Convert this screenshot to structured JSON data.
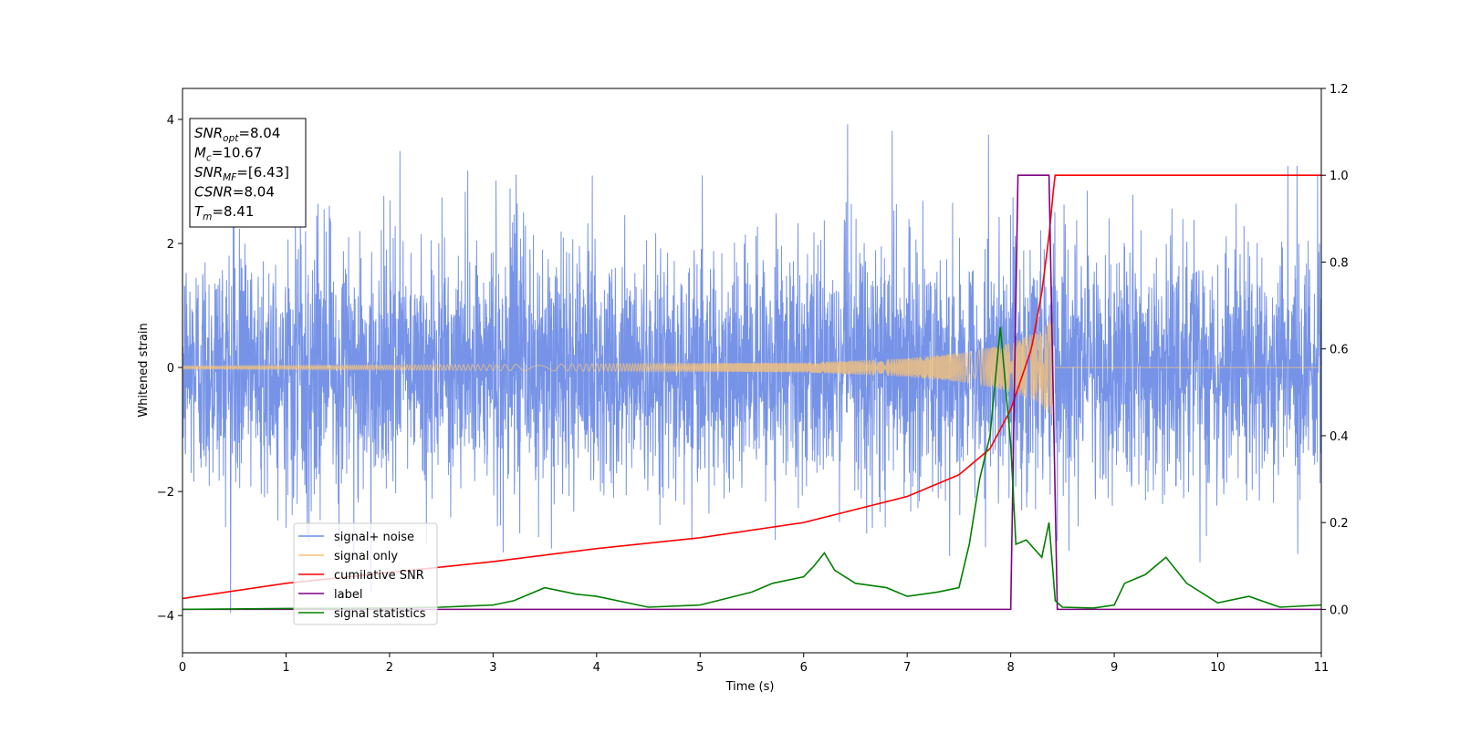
{
  "chart_data": {
    "type": "line",
    "xlabel": "Time (s)",
    "ylabel": "Whitened strain",
    "xlim": [
      0,
      11
    ],
    "ylim_left": [
      -4.6,
      4.5
    ],
    "ylim_right": [
      -0.1,
      1.2
    ],
    "x_ticks": [
      "0",
      "1",
      "2",
      "3",
      "4",
      "5",
      "6",
      "7",
      "8",
      "9",
      "10",
      "11"
    ],
    "y_ticks_left": [
      "4",
      "2",
      "0",
      "−2",
      "−4"
    ],
    "y_ticks_right": [
      "1.2",
      "1.0",
      "0.8",
      "0.6",
      "0.4",
      "0.2",
      "0.0"
    ],
    "info_box": [
      {
        "base": "SNR",
        "sub": "opt",
        "value": "=8.04"
      },
      {
        "base": "M",
        "sub": "c",
        "value": "=10.67"
      },
      {
        "base": "SNR",
        "sub": "MF",
        "value": "=[6.43]"
      },
      {
        "base": "CSNR",
        "sub": "",
        "value": "=8.04"
      },
      {
        "base": "T",
        "sub": "m",
        "value": "=8.41"
      }
    ],
    "legend": {
      "placement": "lower-left",
      "entries": [
        {
          "label": "signal+ noise",
          "color": "#6f8de6"
        },
        {
          "label": "signal only",
          "color": "#f5c27a"
        },
        {
          "label": "cumilative SNR",
          "color": "#ff0000"
        },
        {
          "label": "label",
          "color": "#800080"
        },
        {
          "label": "signal statistics",
          "color": "#008000"
        }
      ]
    },
    "series": [
      {
        "name": "signal+ noise",
        "axis": "left",
        "color": "#6f8de6",
        "kind": "noise",
        "t_start": 0,
        "t_end": 11,
        "std": 1.0,
        "max_abs": 4.0
      },
      {
        "name": "signal only",
        "axis": "left",
        "color": "#f5c27a",
        "kind": "chirp",
        "t_start": 0,
        "t_merge": 8.41,
        "t_end": 11,
        "amplitude_envelope": [
          [
            0,
            0.02
          ],
          [
            6,
            0.08
          ],
          [
            7,
            0.15
          ],
          [
            7.6,
            0.25
          ],
          [
            8.0,
            0.4
          ],
          [
            8.3,
            0.6
          ],
          [
            8.41,
            0.85
          ]
        ]
      },
      {
        "name": "cumilative SNR",
        "axis": "right",
        "x": [
          0,
          1,
          2,
          3,
          4,
          5,
          6,
          7,
          7.5,
          7.8,
          8.0,
          8.2,
          8.3,
          8.37,
          8.41,
          8.42,
          11
        ],
        "y": [
          0.025,
          0.06,
          0.085,
          0.11,
          0.14,
          0.165,
          0.2,
          0.26,
          0.31,
          0.37,
          0.46,
          0.6,
          0.73,
          0.86,
          0.96,
          1.0,
          1.0
        ]
      },
      {
        "name": "label",
        "axis": "right",
        "x": [
          0,
          8.0,
          8.07,
          8.37,
          8.45,
          11
        ],
        "y": [
          0,
          0,
          1.0,
          1.0,
          0,
          0
        ]
      },
      {
        "name": "signal statistics",
        "axis": "right",
        "x": [
          0,
          1,
          2,
          2.5,
          3,
          3.2,
          3.5,
          3.8,
          4,
          4.5,
          5,
          5.5,
          5.7,
          6,
          6.1,
          6.2,
          6.3,
          6.5,
          6.8,
          7,
          7.3,
          7.5,
          7.6,
          7.7,
          7.8,
          7.9,
          8.0,
          8.05,
          8.15,
          8.3,
          8.37,
          8.43,
          8.5,
          8.8,
          9,
          9.1,
          9.3,
          9.5,
          9.7,
          10,
          10.3,
          10.6,
          11
        ],
        "y": [
          0,
          0.002,
          0.003,
          0.005,
          0.01,
          0.02,
          0.05,
          0.035,
          0.03,
          0.005,
          0.01,
          0.04,
          0.06,
          0.075,
          0.1,
          0.13,
          0.09,
          0.06,
          0.05,
          0.03,
          0.04,
          0.05,
          0.15,
          0.3,
          0.4,
          0.65,
          0.38,
          0.15,
          0.16,
          0.12,
          0.2,
          0.02,
          0.005,
          0.003,
          0.01,
          0.06,
          0.08,
          0.12,
          0.06,
          0.015,
          0.03,
          0.005,
          0.01
        ]
      }
    ]
  }
}
